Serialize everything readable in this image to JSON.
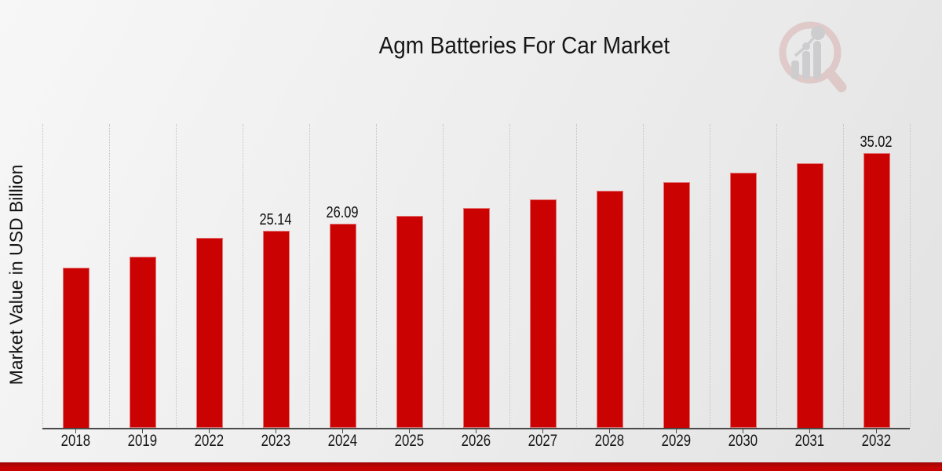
{
  "header": {
    "title": "Agm Batteries For Car Market"
  },
  "chart_data": {
    "type": "bar",
    "title": "Agm Batteries For Car Market",
    "xlabel": "",
    "ylabel": "Market Value in USD Billion",
    "categories": [
      "2018",
      "2019",
      "2022",
      "2023",
      "2024",
      "2025",
      "2026",
      "2027",
      "2028",
      "2029",
      "2030",
      "2031",
      "2032"
    ],
    "values": [
      20.45,
      21.82,
      24.23,
      25.14,
      26.09,
      27.07,
      28.08,
      29.13,
      30.22,
      31.35,
      32.53,
      33.75,
      35.02
    ],
    "data_labels": {
      "2023": "25.14",
      "2024": "26.09",
      "2032": "35.02"
    },
    "bar_color": "#cb0202",
    "ylim": [
      0,
      38.75
    ],
    "grid": {
      "vertical": true,
      "style": "dotted"
    },
    "legend": "none"
  },
  "branding": {
    "watermark_icon": "magnifier-bar-chart-logo",
    "footer_bar_color": "#c30303",
    "logo_ring_color": "#b03030",
    "logo_bars_color": "#474752"
  }
}
